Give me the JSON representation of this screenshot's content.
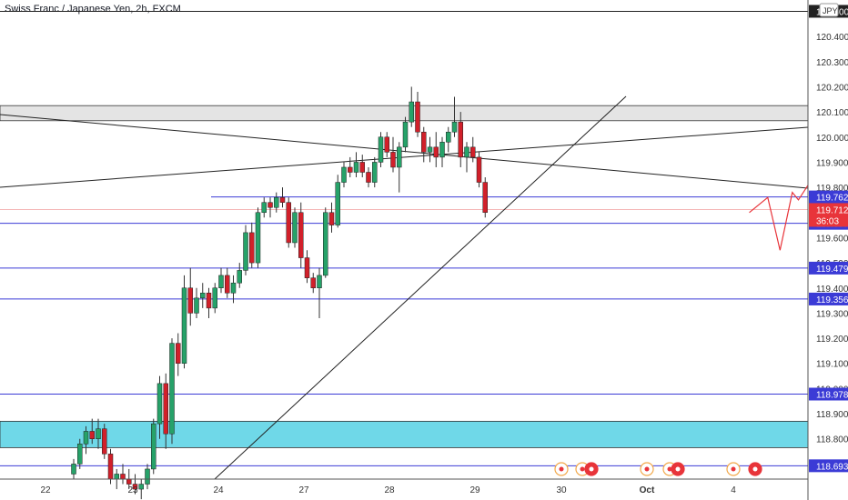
{
  "header": {
    "title": "Swiss Franc / Japanese Yen, 2h, FXCM"
  },
  "currency_badge": "JPY",
  "chart_data": {
    "type": "candlestick",
    "symbol": "CHFJPY",
    "interval": "2h",
    "x_ticks": [
      "22",
      "23",
      "24",
      "27",
      "28",
      "29",
      "30",
      "Oct",
      "4"
    ],
    "y_ticks": [
      "120.500",
      "120.400",
      "120.300",
      "120.200",
      "120.100",
      "120.000",
      "119.900",
      "119.800",
      "119.700",
      "119.600",
      "119.500",
      "119.400",
      "119.300",
      "119.200",
      "119.100",
      "119.000",
      "118.900",
      "118.800",
      "118.700"
    ],
    "ylim": [
      118.64,
      120.545
    ],
    "colors": {
      "up": "#26a269",
      "down": "#d1202a",
      "level": "#3b3bd6",
      "projection": "#e8343a",
      "zone": "#6fd8e8",
      "resistance_zone": "#e4e4e4"
    },
    "levels": [
      {
        "value": 120.5,
        "label": "120.500"
      },
      {
        "value": 119.762,
        "label": "119.762"
      },
      {
        "value": 119.657,
        "label": "119.657"
      },
      {
        "value": 119.479,
        "label": "119.479"
      },
      {
        "value": 119.356,
        "label": "119.356"
      },
      {
        "value": 118.978,
        "label": "118.978"
      },
      {
        "value": 118.693,
        "label": "118.693"
      }
    ],
    "current_price": {
      "value": 119.712,
      "label": "119.712",
      "countdown": "36:03"
    },
    "resistance_zone": [
      120.065,
      120.125
    ],
    "demand_zone": [
      118.765,
      118.87
    ],
    "candles": [
      [
        118.66,
        118.72,
        118.64,
        118.7
      ],
      [
        118.7,
        118.8,
        118.68,
        118.78
      ],
      [
        118.78,
        118.85,
        118.74,
        118.83
      ],
      [
        118.83,
        118.88,
        118.78,
        118.8
      ],
      [
        118.8,
        118.88,
        118.76,
        118.84
      ],
      [
        118.84,
        118.86,
        118.72,
        118.74
      ],
      [
        118.74,
        118.76,
        118.62,
        118.64
      ],
      [
        118.64,
        118.68,
        118.6,
        118.66
      ],
      [
        118.66,
        118.7,
        118.62,
        118.64
      ],
      [
        118.64,
        118.68,
        118.6,
        118.62
      ],
      [
        118.62,
        118.66,
        118.58,
        118.6
      ],
      [
        118.6,
        118.64,
        118.56,
        118.62
      ],
      [
        118.62,
        118.7,
        118.6,
        118.68
      ],
      [
        118.68,
        118.88,
        118.66,
        118.86
      ],
      [
        118.86,
        119.05,
        118.8,
        119.02
      ],
      [
        119.02,
        119.06,
        118.76,
        118.82
      ],
      [
        118.82,
        119.2,
        118.78,
        119.18
      ],
      [
        119.18,
        119.22,
        119.05,
        119.1
      ],
      [
        119.1,
        119.45,
        119.08,
        119.4
      ],
      [
        119.4,
        119.48,
        119.25,
        119.3
      ],
      [
        119.3,
        119.4,
        119.28,
        119.36
      ],
      [
        119.36,
        119.42,
        119.32,
        119.38
      ],
      [
        119.38,
        119.4,
        119.28,
        119.32
      ],
      [
        119.32,
        119.42,
        119.3,
        119.4
      ],
      [
        119.4,
        119.48,
        119.38,
        119.45
      ],
      [
        119.45,
        119.48,
        119.36,
        119.38
      ],
      [
        119.38,
        119.45,
        119.34,
        119.42
      ],
      [
        119.42,
        119.5,
        119.4,
        119.47
      ],
      [
        119.47,
        119.65,
        119.45,
        119.62
      ],
      [
        119.62,
        119.66,
        119.48,
        119.5
      ],
      [
        119.5,
        119.72,
        119.48,
        119.7
      ],
      [
        119.7,
        119.76,
        119.68,
        119.74
      ],
      [
        119.74,
        119.76,
        119.68,
        119.72
      ],
      [
        119.72,
        119.78,
        119.7,
        119.76
      ],
      [
        119.76,
        119.8,
        119.72,
        119.74
      ],
      [
        119.74,
        119.76,
        119.56,
        119.58
      ],
      [
        119.58,
        119.72,
        119.56,
        119.7
      ],
      [
        119.7,
        119.74,
        119.48,
        119.52
      ],
      [
        119.52,
        119.55,
        119.42,
        119.44
      ],
      [
        119.44,
        119.46,
        119.38,
        119.4
      ],
      [
        119.4,
        119.48,
        119.28,
        119.45
      ],
      [
        119.45,
        119.72,
        119.44,
        119.7
      ],
      [
        119.7,
        119.74,
        119.62,
        119.65
      ],
      [
        119.65,
        119.85,
        119.64,
        119.82
      ],
      [
        119.82,
        119.9,
        119.8,
        119.88
      ],
      [
        119.88,
        119.92,
        119.84,
        119.86
      ],
      [
        119.86,
        119.94,
        119.84,
        119.9
      ],
      [
        119.9,
        119.93,
        119.84,
        119.86
      ],
      [
        119.86,
        119.88,
        119.8,
        119.82
      ],
      [
        119.82,
        119.92,
        119.8,
        119.9
      ],
      [
        119.9,
        120.02,
        119.88,
        120.0
      ],
      [
        120.0,
        120.02,
        119.92,
        119.94
      ],
      [
        119.94,
        120.0,
        119.86,
        119.88
      ],
      [
        119.88,
        119.98,
        119.78,
        119.96
      ],
      [
        119.96,
        120.08,
        119.94,
        120.06
      ],
      [
        120.06,
        120.2,
        120.04,
        120.14
      ],
      [
        120.14,
        120.18,
        120.0,
        120.02
      ],
      [
        120.02,
        120.04,
        119.9,
        119.94
      ],
      [
        119.94,
        120.0,
        119.9,
        119.96
      ],
      [
        119.96,
        120.02,
        119.88,
        119.92
      ],
      [
        119.92,
        120.0,
        119.88,
        119.98
      ],
      [
        119.98,
        120.04,
        119.94,
        120.02
      ],
      [
        120.02,
        120.16,
        120.0,
        120.06
      ],
      [
        120.06,
        120.1,
        119.88,
        119.92
      ],
      [
        119.92,
        119.98,
        119.86,
        119.96
      ],
      [
        119.96,
        120.0,
        119.9,
        119.92
      ],
      [
        119.92,
        119.94,
        119.8,
        119.82
      ],
      [
        119.82,
        119.84,
        119.68,
        119.7
      ]
    ],
    "projection": [
      [
        110,
        119.7
      ],
      [
        113,
        119.76
      ],
      [
        115,
        119.55
      ],
      [
        117,
        119.78
      ],
      [
        118,
        119.75
      ],
      [
        122,
        119.9
      ],
      [
        127,
        118.79
      ],
      [
        128,
        118.81
      ]
    ],
    "projection2": [
      [
        122,
        119.9
      ],
      [
        146,
        118.68
      ]
    ],
    "markers": [
      "event",
      "event",
      "event",
      "event",
      "event",
      "event",
      "event",
      "event"
    ]
  }
}
